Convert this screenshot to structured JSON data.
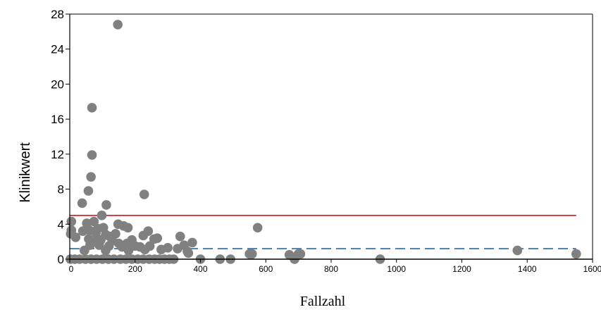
{
  "chart_data": {
    "type": "scatter",
    "xlabel": "Fallzahl",
    "ylabel": "Klinikwert",
    "xlim": [
      0,
      1600
    ],
    "ylim": [
      0,
      28
    ],
    "xticks": [
      0,
      200,
      400,
      600,
      800,
      1000,
      1200,
      1400,
      1600
    ],
    "yticks": [
      0,
      4,
      8,
      12,
      16,
      20,
      24,
      28
    ],
    "xtick_labels": [
      "0",
      "200",
      "400",
      "600",
      "800",
      "1000",
      "1200",
      "1400",
      "1600"
    ],
    "ytick_labels": [
      "0",
      "4",
      "8",
      "12",
      "16",
      "20",
      "24",
      "28"
    ],
    "grid": false,
    "point_color": "#808080",
    "reference_lines": [
      {
        "y": 5.0,
        "style": "solid",
        "color": "#e02020"
      },
      {
        "y": 1.2,
        "style": "dashed",
        "color": "#3a7fb8"
      }
    ],
    "points": [
      [
        147,
        26.8
      ],
      [
        68,
        17.3
      ],
      [
        68,
        11.9
      ],
      [
        65,
        9.4
      ],
      [
        57,
        7.8
      ],
      [
        228,
        7.4
      ],
      [
        38,
        6.4
      ],
      [
        112,
        6.2
      ],
      [
        98,
        5.0
      ],
      [
        5,
        4.3
      ],
      [
        74,
        4.3
      ],
      [
        52,
        4.1
      ],
      [
        148,
        4.0
      ],
      [
        165,
        3.8
      ],
      [
        178,
        3.6
      ],
      [
        575,
        3.6
      ],
      [
        86,
        3.5
      ],
      [
        103,
        3.6
      ],
      [
        5,
        3.3
      ],
      [
        40,
        3.2
      ],
      [
        60,
        3.3
      ],
      [
        80,
        3.0
      ],
      [
        110,
        2.8
      ],
      [
        122,
        2.6
      ],
      [
        140,
        2.9
      ],
      [
        240,
        3.2
      ],
      [
        225,
        2.7
      ],
      [
        258,
        2.3
      ],
      [
        268,
        2.4
      ],
      [
        338,
        2.6
      ],
      [
        3,
        2.9
      ],
      [
        18,
        2.5
      ],
      [
        58,
        2.3
      ],
      [
        75,
        2.0
      ],
      [
        95,
        2.2
      ],
      [
        130,
        2.1
      ],
      [
        150,
        1.8
      ],
      [
        175,
        1.8
      ],
      [
        190,
        2.2
      ],
      [
        62,
        1.6
      ],
      [
        90,
        1.6
      ],
      [
        120,
        1.5
      ],
      [
        160,
        1.4
      ],
      [
        200,
        1.5
      ],
      [
        215,
        1.4
      ],
      [
        245,
        1.5
      ],
      [
        300,
        1.3
      ],
      [
        330,
        1.2
      ],
      [
        350,
        1.6
      ],
      [
        375,
        1.9
      ],
      [
        45,
        1.0
      ],
      [
        110,
        1.0
      ],
      [
        180,
        1.0
      ],
      [
        230,
        1.1
      ],
      [
        280,
        1.1
      ],
      [
        360,
        0.9
      ],
      [
        363,
        0.7
      ],
      [
        550,
        0.6
      ],
      [
        558,
        0.6
      ],
      [
        672,
        0.5
      ],
      [
        700,
        0.6
      ],
      [
        706,
        0.6
      ],
      [
        1370,
        1.0
      ],
      [
        1550,
        0.6
      ],
      [
        2,
        0.0
      ],
      [
        15,
        0.0
      ],
      [
        30,
        0.0
      ],
      [
        48,
        0.0
      ],
      [
        65,
        0.0
      ],
      [
        82,
        0.0
      ],
      [
        100,
        0.0
      ],
      [
        118,
        0.0
      ],
      [
        135,
        0.0
      ],
      [
        155,
        0.0
      ],
      [
        172,
        0.0
      ],
      [
        190,
        0.0
      ],
      [
        208,
        0.0
      ],
      [
        225,
        0.0
      ],
      [
        243,
        0.0
      ],
      [
        260,
        0.0
      ],
      [
        275,
        0.0
      ],
      [
        290,
        0.0
      ],
      [
        305,
        0.0
      ],
      [
        318,
        0.0
      ],
      [
        400,
        0.0
      ],
      [
        460,
        0.0
      ],
      [
        492,
        0.0
      ],
      [
        688,
        0.0
      ],
      [
        950,
        0.0
      ]
    ]
  }
}
